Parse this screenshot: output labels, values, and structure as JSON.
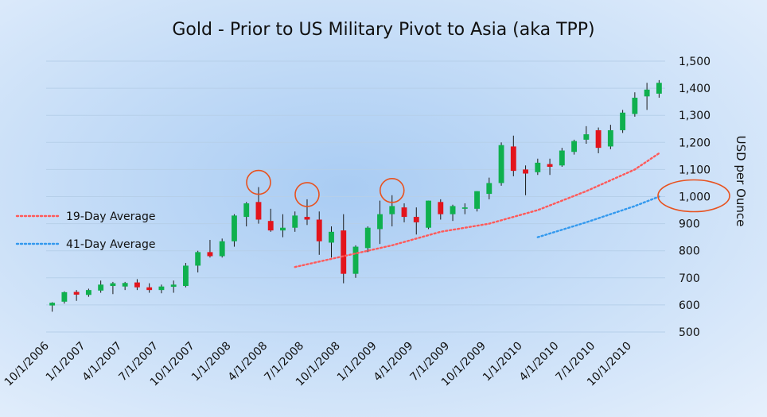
{
  "chart_data": {
    "type": "candlestick",
    "title": "Gold - Prior to US Military Pivot to Asia (aka TPP)",
    "ylabel": "USD per Ounce",
    "ylim": [
      500,
      1500
    ],
    "yticks": [
      "500",
      "600",
      "700",
      "800",
      "900",
      "1,000",
      "1,100",
      "1,200",
      "1,300",
      "1,400",
      "1,500"
    ],
    "ytick_values": [
      500,
      600,
      700,
      800,
      900,
      1000,
      1100,
      1200,
      1300,
      1400,
      1500
    ],
    "xticks": [
      "10/1/2006",
      "1/1/2007",
      "4/1/2007",
      "7/1/2007",
      "10/1/2007",
      "1/1/2008",
      "4/1/2008",
      "7/1/2008",
      "10/1/2008",
      "1/1/2009",
      "4/1/2009",
      "7/1/2009",
      "10/1/2009",
      "1/1/2010",
      "4/1/2010",
      "7/1/2010",
      "10/1/2010"
    ],
    "grid": true,
    "colors": {
      "up": "#0fb04e",
      "down": "#e3141c",
      "ma19": "#ff5a5a",
      "ma41": "#3399ee",
      "highlight": "#e8521f"
    },
    "candles": [
      {
        "o": 598,
        "h": 610,
        "l": 575,
        "c": 608
      },
      {
        "o": 612,
        "h": 650,
        "l": 605,
        "c": 647
      },
      {
        "o": 648,
        "h": 655,
        "l": 615,
        "c": 638
      },
      {
        "o": 637,
        "h": 660,
        "l": 630,
        "c": 655
      },
      {
        "o": 653,
        "h": 690,
        "l": 645,
        "c": 675
      },
      {
        "o": 670,
        "h": 685,
        "l": 640,
        "c": 680
      },
      {
        "o": 668,
        "h": 685,
        "l": 655,
        "c": 681
      },
      {
        "o": 683,
        "h": 695,
        "l": 655,
        "c": 665
      },
      {
        "o": 665,
        "h": 680,
        "l": 645,
        "c": 655
      },
      {
        "o": 655,
        "h": 675,
        "l": 643,
        "c": 668
      },
      {
        "o": 667,
        "h": 690,
        "l": 645,
        "c": 675
      },
      {
        "o": 670,
        "h": 755,
        "l": 665,
        "c": 745
      },
      {
        "o": 745,
        "h": 800,
        "l": 720,
        "c": 795
      },
      {
        "o": 795,
        "h": 840,
        "l": 775,
        "c": 780
      },
      {
        "o": 780,
        "h": 845,
        "l": 775,
        "c": 835
      },
      {
        "o": 835,
        "h": 935,
        "l": 815,
        "c": 930
      },
      {
        "o": 925,
        "h": 980,
        "l": 890,
        "c": 975
      },
      {
        "o": 980,
        "h": 1035,
        "l": 900,
        "c": 915
      },
      {
        "o": 910,
        "h": 955,
        "l": 870,
        "c": 875
      },
      {
        "o": 875,
        "h": 935,
        "l": 850,
        "c": 885
      },
      {
        "o": 885,
        "h": 945,
        "l": 870,
        "c": 930
      },
      {
        "o": 925,
        "h": 990,
        "l": 895,
        "c": 915
      },
      {
        "o": 915,
        "h": 945,
        "l": 785,
        "c": 835
      },
      {
        "o": 830,
        "h": 890,
        "l": 775,
        "c": 870
      },
      {
        "o": 875,
        "h": 935,
        "l": 680,
        "c": 715
      },
      {
        "o": 715,
        "h": 820,
        "l": 700,
        "c": 815
      },
      {
        "o": 810,
        "h": 890,
        "l": 795,
        "c": 885
      },
      {
        "o": 880,
        "h": 985,
        "l": 825,
        "c": 935
      },
      {
        "o": 935,
        "h": 1005,
        "l": 890,
        "c": 965
      },
      {
        "o": 960,
        "h": 975,
        "l": 905,
        "c": 925
      },
      {
        "o": 925,
        "h": 960,
        "l": 860,
        "c": 905
      },
      {
        "o": 885,
        "h": 985,
        "l": 880,
        "c": 985
      },
      {
        "o": 980,
        "h": 990,
        "l": 915,
        "c": 935
      },
      {
        "o": 935,
        "h": 970,
        "l": 910,
        "c": 965
      },
      {
        "o": 955,
        "h": 975,
        "l": 935,
        "c": 960
      },
      {
        "o": 955,
        "h": 1020,
        "l": 945,
        "c": 1020
      },
      {
        "o": 1010,
        "h": 1070,
        "l": 990,
        "c": 1050
      },
      {
        "o": 1050,
        "h": 1200,
        "l": 1040,
        "c": 1190
      },
      {
        "o": 1185,
        "h": 1225,
        "l": 1075,
        "c": 1095
      },
      {
        "o": 1100,
        "h": 1115,
        "l": 1005,
        "c": 1085
      },
      {
        "o": 1090,
        "h": 1140,
        "l": 1080,
        "c": 1125
      },
      {
        "o": 1120,
        "h": 1140,
        "l": 1080,
        "c": 1110
      },
      {
        "o": 1115,
        "h": 1180,
        "l": 1110,
        "c": 1170
      },
      {
        "o": 1165,
        "h": 1210,
        "l": 1155,
        "c": 1205
      },
      {
        "o": 1210,
        "h": 1260,
        "l": 1195,
        "c": 1230
      },
      {
        "o": 1245,
        "h": 1255,
        "l": 1160,
        "c": 1180
      },
      {
        "o": 1185,
        "h": 1265,
        "l": 1175,
        "c": 1245
      },
      {
        "o": 1245,
        "h": 1320,
        "l": 1235,
        "c": 1310
      },
      {
        "o": 1305,
        "h": 1385,
        "l": 1295,
        "c": 1365
      },
      {
        "o": 1370,
        "h": 1420,
        "l": 1320,
        "c": 1395
      },
      {
        "o": 1380,
        "h": 1430,
        "l": 1365,
        "c": 1420
      }
    ],
    "series": [
      {
        "name": "19-Day Average",
        "style": "dotted",
        "x": [
          20,
          24,
          28,
          32,
          36,
          40,
          44,
          48,
          50
        ],
        "y": [
          740,
          780,
          820,
          870,
          900,
          950,
          1020,
          1100,
          1160
        ]
      },
      {
        "name": "41-Day Average",
        "style": "dotted",
        "x": [
          40,
          44,
          48,
          50
        ],
        "y": [
          850,
          905,
          965,
          1000
        ]
      }
    ],
    "highlight_candles": [
      17,
      21,
      28
    ],
    "highlight_value": 1000
  }
}
